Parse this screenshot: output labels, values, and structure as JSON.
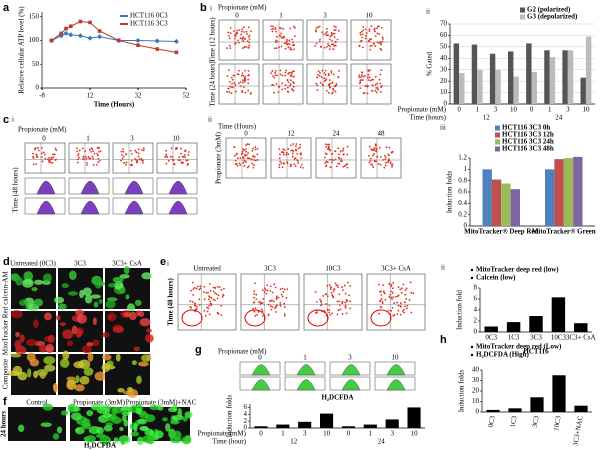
{
  "figure": {
    "letters": [
      "a",
      "b",
      "c",
      "d",
      "e",
      "f",
      "g",
      "h"
    ],
    "b_i": {
      "label": "i",
      "header": "Propionate (mM)",
      "columns": [
        "0",
        "1",
        "3",
        "10"
      ],
      "rows": [
        "Time (12 hours)",
        "Time (24 hours)"
      ]
    },
    "c_i": {
      "label": "i",
      "header": "Propionate (mM)",
      "columns": [
        "0",
        "1",
        "3",
        "10"
      ],
      "row": "Time (48 hours)"
    },
    "c_ii": {
      "label": "ii",
      "header": "Time (Hours)",
      "columns": [
        "0",
        "12",
        "24",
        "48"
      ],
      "row": "Propionate (3mM)"
    },
    "d": {
      "columns": [
        "Untreated (0C3)",
        "3C3",
        "3C3+ CsA"
      ],
      "rows": [
        "calcein-AM",
        "MitoTracker Red",
        "Composite"
      ]
    },
    "e_i": {
      "label": "i",
      "columns": [
        "Untreated",
        "3C3",
        "10C3",
        "3C3+ CsA"
      ],
      "row": "Time (48 hours)"
    },
    "f": {
      "columns": [
        "Control",
        "Propionate (3mM)",
        "Propionate (3mM)+NAC"
      ],
      "row": "24 hours",
      "caption": "H₂DCFDA"
    },
    "g": {
      "header": "Propionate (mM)",
      "columns": [
        "0",
        "1",
        "3",
        "10"
      ]
    }
  },
  "chart_data": [
    {
      "type": "line",
      "y_label": "Relative cellular ATP level (%)",
      "x_label": "Time (Hours)",
      "x": [
        -4,
        0,
        2,
        4,
        8,
        12,
        16,
        24,
        32,
        40,
        48
      ],
      "series": [
        {
          "name": "HCT116 0C3",
          "color": "#3a78b8",
          "values": [
            100,
            110,
            115,
            112,
            110,
            105,
            108,
            100,
            100,
            99,
            98
          ]
        },
        {
          "name": "HCT116 3C3",
          "color": "#c0392b",
          "values": [
            100,
            115,
            125,
            130,
            140,
            138,
            120,
            100,
            90,
            82,
            75
          ]
        }
      ],
      "xlim": [
        -8,
        52
      ],
      "xticks": [
        -8,
        12,
        32,
        52
      ],
      "ylim": [
        0,
        160
      ],
      "yticks": [
        0,
        50,
        100,
        150
      ]
    },
    {
      "type": "bar",
      "panel_label": "ii",
      "y_label": "% Gated",
      "x_label": "Propionate (mM)",
      "group_label": "Time (hours)",
      "groups": [
        "12",
        "24"
      ],
      "categories": [
        "0",
        "1",
        "3",
        "10",
        "0",
        "1",
        "3",
        "10"
      ],
      "series": [
        {
          "name": "G2 (polarized)",
          "color": "#555555",
          "values": [
            53,
            52,
            44,
            46,
            53,
            47,
            47,
            23
          ]
        },
        {
          "name": "G3 (depolarized)",
          "color": "#bbbbbb",
          "values": [
            27,
            30,
            30,
            24,
            28,
            41,
            47,
            59
          ]
        }
      ],
      "ylim": [
        0,
        70
      ],
      "yticks": [
        0,
        10,
        20,
        30,
        40,
        50,
        60,
        70
      ],
      "grid": true
    },
    {
      "type": "bar",
      "panel_label": "iii",
      "y_label": "Induction folds",
      "categories": [
        "MitoTracker® Deep Red",
        "MitoTracker® Green"
      ],
      "series": [
        {
          "name": "HCT116 3C3 0h",
          "color": "#4f81bd",
          "values": [
            1.0,
            1.0
          ]
        },
        {
          "name": "HCT116 3C3 12h",
          "color": "#c0504d",
          "values": [
            0.82,
            1.18
          ]
        },
        {
          "name": "HCT116 3C3 24h",
          "color": "#9bbb59",
          "values": [
            0.75,
            1.2
          ]
        },
        {
          "name": "HCT116 3C3 48h",
          "color": "#8064a2",
          "values": [
            0.65,
            1.22
          ]
        }
      ],
      "ylim": [
        0,
        1.2
      ],
      "yticks": [
        0,
        0.2,
        0.4,
        0.6,
        0.8,
        1,
        1.2
      ]
    },
    {
      "type": "bar",
      "panel_label": "ii",
      "y_label": "Induction fold",
      "x_label": "HCT116",
      "legend_items": [
        "MitoTracker deep red (low)",
        "Calcein (low)"
      ],
      "categories": [
        "0C3",
        "1C3",
        "3C3",
        "10C3",
        "3C3+ CsA"
      ],
      "values": [
        1,
        1.8,
        2.9,
        6.3,
        1.6
      ],
      "color": "#000000",
      "ylim": [
        0,
        8
      ],
      "yticks": [
        0,
        2,
        4,
        6,
        8
      ]
    },
    {
      "type": "bar",
      "title": "H₂DCFDA",
      "y_label": "Induction folds",
      "x_label": "Propionate (mM)",
      "group_label": "Time (hour)",
      "groups": [
        "12",
        "24"
      ],
      "categories": [
        "0",
        "1",
        "3",
        "10",
        "0",
        "1",
        "3",
        "10"
      ],
      "values": [
        0.5,
        1,
        1.8,
        4.2,
        0.5,
        1,
        2.5,
        6
      ],
      "color": "#000000",
      "ylim": [
        0,
        7
      ],
      "yticks": [
        0,
        2,
        4,
        6
      ]
    },
    {
      "type": "bar",
      "y_label": "Induction folds",
      "legend_items": [
        "MitoTracker deep red (Low)",
        "H₂DCFDA (High)"
      ],
      "categories": [
        "0C3",
        "1C3",
        "3C3",
        "10C3",
        "3C3+NAC"
      ],
      "values": [
        2,
        3.5,
        14,
        35,
        6
      ],
      "color": "#000000",
      "ylim": [
        0,
        40
      ],
      "yticks": [
        0,
        10,
        20,
        30,
        40
      ]
    }
  ]
}
